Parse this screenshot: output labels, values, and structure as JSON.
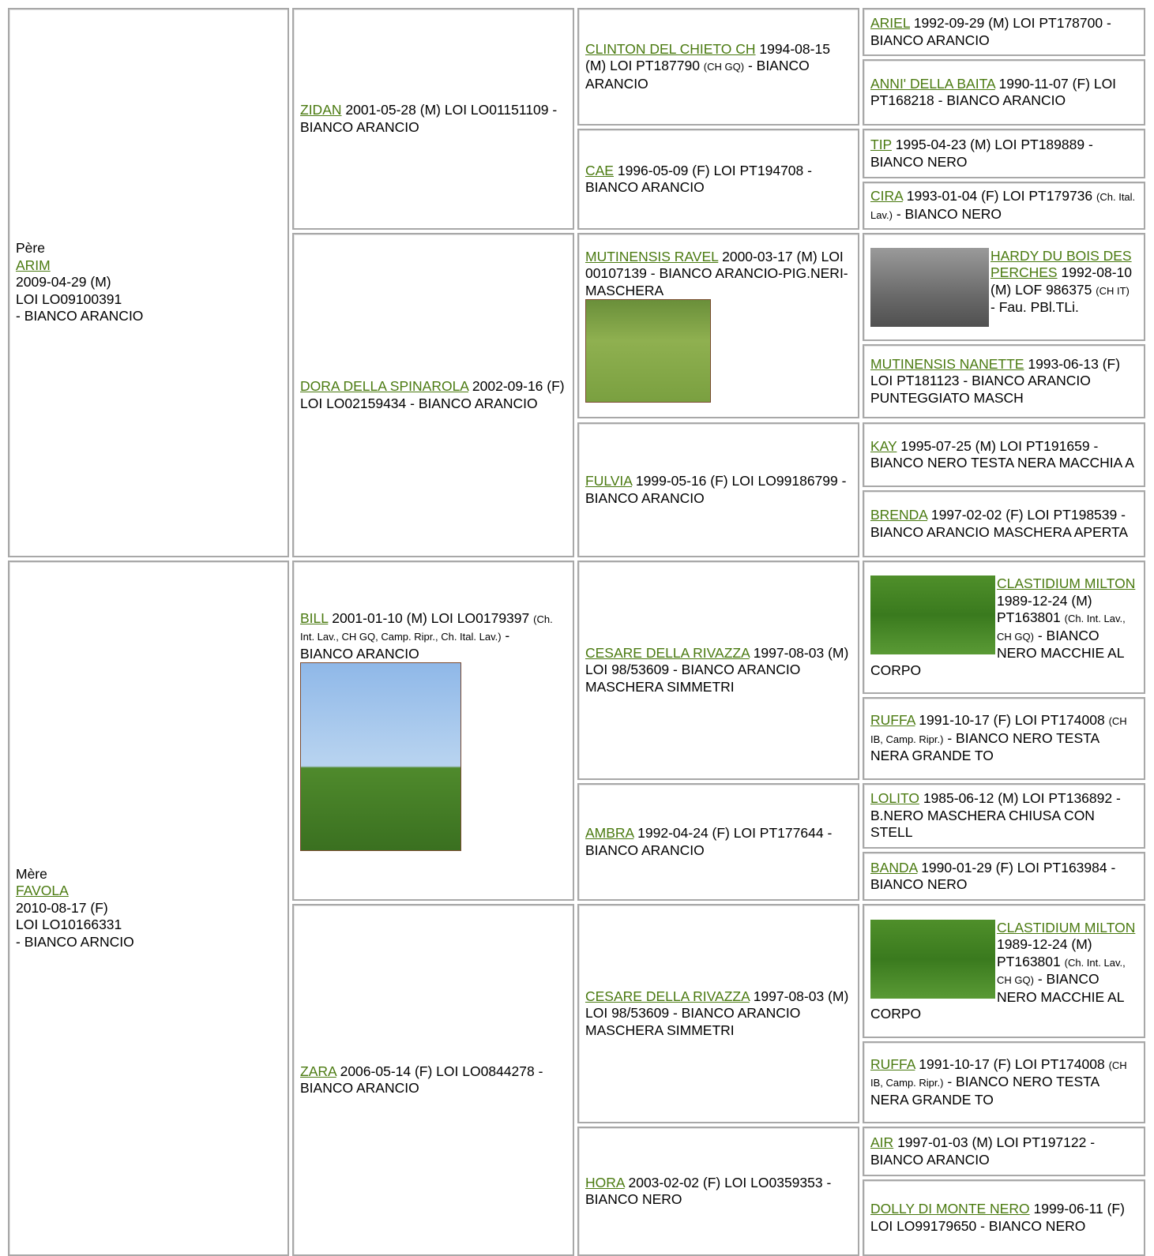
{
  "pere": {
    "label": "Père",
    "name": "ARIM",
    "lines": [
      "2009-04-29 (M)",
      "LOI LO09100391",
      "- BIANCO ARANCIO"
    ]
  },
  "mere": {
    "label": "Mère",
    "name": "FAVOLA",
    "lines": [
      "2010-08-17 (F)",
      "LOI LO10166331",
      "- BIANCO ARNCIO"
    ]
  },
  "gen2": [
    {
      "name": "ZIDAN",
      "info": "2001-05-28 (M) LOI LO01151109",
      "color": "- BIANCO ARANCIO"
    },
    {
      "name": "DORA DELLA SPINAROLA",
      "info": "2002-09-16 (F) LOI LO02159434",
      "color": "- BIANCO ARANCIO"
    },
    {
      "name": "BILL",
      "info": "2001-01-10 (M) LOI LO0179397",
      "titles": "(Ch. Int. Lav., CH GQ, Camp. Ripr., Ch. Ital. Lav.)",
      "color": "- BIANCO ARANCIO",
      "photo": true
    },
    {
      "name": "ZARA",
      "info": "2006-05-14 (F) LOI LO0844278",
      "color": "- BIANCO ARANCIO"
    }
  ],
  "gen3": [
    {
      "name": "CLINTON DEL CHIETO CH",
      "info": "1994-08-15 (M) LOI PT187790",
      "titles": "(CH GQ)",
      "color": "- BIANCO ARANCIO"
    },
    {
      "name": "CAE",
      "info": "1996-05-09 (F) LOI PT194708",
      "color": "- BIANCO ARANCIO"
    },
    {
      "name": "MUTINENSIS RAVEL",
      "info": "2000-03-17 (M) LOI 00107139",
      "color": "- BIANCO ARANCIO-PIG.NERI-MASCHERA",
      "photo": true
    },
    {
      "name": "FULVIA",
      "info": "1999-05-16 (F) LOI LO99186799",
      "color": "- BIANCO ARANCIO"
    },
    {
      "name": "CESARE DELLA RIVAZZA",
      "info": "1997-08-03 (M) LOI 98/53609",
      "color": "- BIANCO ARANCIO MASCHERA SIMMETRI"
    },
    {
      "name": "AMBRA",
      "info": "1992-04-24 (F) LOI PT177644",
      "color": "- BIANCO ARANCIO"
    },
    {
      "name": "CESARE DELLA RIVAZZA",
      "info": "1997-08-03 (M) LOI 98/53609",
      "color": "- BIANCO ARANCIO MASCHERA SIMMETRI"
    },
    {
      "name": "HORA",
      "info": "2003-02-02 (F) LOI LO0359353",
      "color": "- BIANCO NERO"
    }
  ],
  "gen4": [
    {
      "name": "ARIEL",
      "info": "1992-09-29 (M) LOI PT178700",
      "color": "- BIANCO ARANCIO"
    },
    {
      "name": "ANNI' DELLA BAITA",
      "info": "1990-11-07 (F) LOI PT168218",
      "color": "- BIANCO ARANCIO"
    },
    {
      "name": "TIP",
      "info": "1995-04-23 (M) LOI PT189889",
      "color": "- BIANCO NERO"
    },
    {
      "name": "CIRA",
      "info": "1993-01-04 (F) LOI PT179736",
      "titles": "(Ch. Ital. Lav.)",
      "color": "- BIANCO NERO"
    },
    {
      "name": "HARDY DU BOIS DES PERCHES",
      "info": "1992-08-10 (M) LOF 986375",
      "titles": "(CH IT)",
      "color": "- Fau. PBl.TLi.",
      "photo": true
    },
    {
      "name": "MUTINENSIS NANETTE",
      "info": "1993-06-13 (F) LOI PT181123",
      "color": "- BIANCO ARANCIO PUNTEGGIATO MASCH"
    },
    {
      "name": "KAY",
      "info": "1995-07-25 (M) LOI PT191659",
      "color": "- BIANCO NERO TESTA NERA MACCHIA A"
    },
    {
      "name": "BRENDA",
      "info": "1997-02-02 (F) LOI PT198539",
      "color": "- BIANCO ARANCIO MASCHERA APERTA"
    },
    {
      "name": "CLASTIDIUM MILTON",
      "info": "1989-12-24 (M) PT163801",
      "titles": "(Ch. Int. Lav., CH GQ)",
      "color": "- BIANCO NERO MACCHIE AL CORPO",
      "photo": true
    },
    {
      "name": "RUFFA",
      "info": "1991-10-17 (F) LOI PT174008",
      "titles": "(CH IB, Camp. Ripr.)",
      "color": "- BIANCO NERO TESTA NERA GRANDE TO"
    },
    {
      "name": "LOLITO",
      "info": "1985-06-12 (M) LOI PT136892",
      "color": "- B.NERO MASCHERA CHIUSA CON STELL"
    },
    {
      "name": "BANDA",
      "info": "1990-01-29 (F) LOI PT163984",
      "color": "- BIANCO NERO"
    },
    {
      "name": "CLASTIDIUM MILTON",
      "info": "1989-12-24 (M) PT163801",
      "titles": "(Ch. Int. Lav., CH GQ)",
      "color": "- BIANCO NERO MACCHIE AL CORPO",
      "photo": true
    },
    {
      "name": "RUFFA",
      "info": "1991-10-17 (F) LOI PT174008",
      "titles": "(CH IB, Camp. Ripr.)",
      "color": "- BIANCO NERO TESTA NERA GRANDE TO"
    },
    {
      "name": "AIR",
      "info": "1997-01-03 (M) LOI PT197122",
      "color": "- BIANCO ARANCIO"
    },
    {
      "name": "DOLLY DI MONTE NERO",
      "info": "1999-06-11 (F) LOI LO99179650",
      "color": "- BIANCO NERO"
    }
  ]
}
